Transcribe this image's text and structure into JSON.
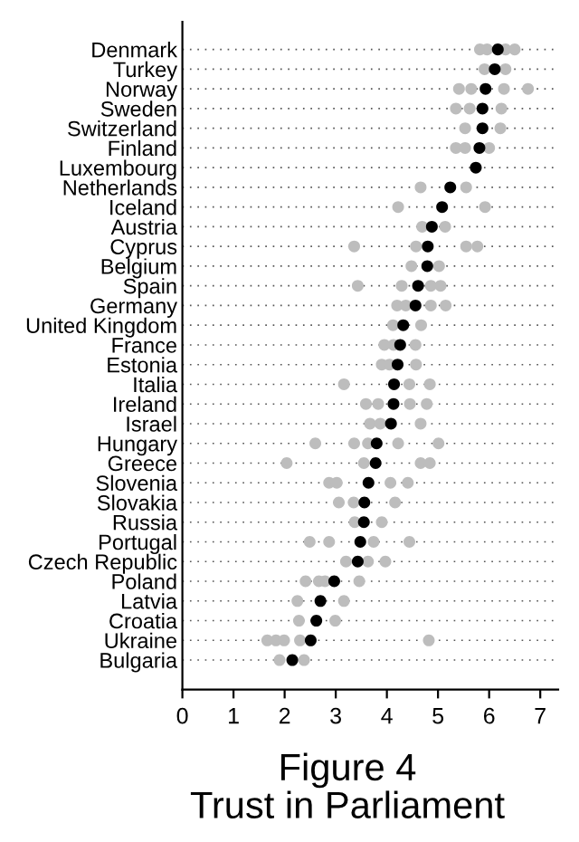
{
  "chart_data": {
    "type": "scatter",
    "orientation": "horizontal",
    "title": "Figure 4",
    "subtitle": "Trust in Parliament",
    "categories": [
      "Denmark",
      "Turkey",
      "Norway",
      "Sweden",
      "Switzerland",
      "Finland",
      "Luxembourg",
      "Netherlands",
      "Iceland",
      "Austria",
      "Cyprus",
      "Belgium",
      "Spain",
      "Germany",
      "United Kingdom",
      "France",
      "Estonia",
      "Italia",
      "Ireland",
      "Israel",
      "Hungary",
      "Greece",
      "Slovenia",
      "Slovakia",
      "Russia",
      "Portugal",
      "Czech Republic",
      "Poland",
      "Latvia",
      "Croatia",
      "Ukraine",
      "Bulgaria"
    ],
    "series": [
      {
        "color": "#bdbdbd",
        "x": [
          "Denmark",
          "Denmark",
          "Denmark",
          "Denmark",
          "Turkey",
          "Turkey",
          "Norway",
          "Norway",
          "Norway",
          "Norway",
          "Sweden",
          "Sweden",
          "Sweden",
          "Switzerland",
          "Switzerland",
          "Finland",
          "Finland",
          "Finland",
          "Netherlands",
          "Netherlands",
          "Iceland",
          "Iceland",
          "Austria",
          "Austria",
          "Cyprus",
          "Cyprus",
          "Cyprus",
          "Cyprus",
          "Belgium",
          "Belgium",
          "Spain",
          "Spain",
          "Spain",
          "Spain",
          "Germany",
          "Germany",
          "Germany",
          "Germany",
          "United Kingdom",
          "United Kingdom",
          "France",
          "France",
          "France",
          "Estonia",
          "Estonia",
          "Estonia",
          "Italia",
          "Italia",
          "Italia",
          "Ireland",
          "Ireland",
          "Ireland",
          "Ireland",
          "Israel",
          "Israel",
          "Israel",
          "Hungary",
          "Hungary",
          "Hungary",
          "Hungary",
          "Hungary",
          "Greece",
          "Greece",
          "Greece",
          "Greece",
          "Slovenia",
          "Slovenia",
          "Slovenia",
          "Slovenia",
          "Slovakia",
          "Slovakia",
          "Slovakia",
          "Russia",
          "Russia",
          "Portugal",
          "Portugal",
          "Portugal",
          "Portugal",
          "Czech Republic",
          "Czech Republic",
          "Czech Republic",
          "Poland",
          "Poland",
          "Poland",
          "Poland",
          "Latvia",
          "Latvia",
          "Croatia",
          "Croatia",
          "Ukraine",
          "Ukraine",
          "Ukraine",
          "Ukraine",
          "Ukraine",
          "Bulgaria",
          "Bulgaria"
        ],
        "values": [
          5.82,
          5.96,
          6.32,
          6.5,
          5.91,
          6.32,
          5.41,
          5.65,
          6.29,
          6.76,
          5.35,
          5.62,
          6.24,
          5.53,
          6.22,
          5.35,
          5.53,
          6.0,
          4.66,
          5.55,
          4.22,
          5.92,
          4.69,
          5.14,
          3.36,
          4.57,
          5.55,
          5.77,
          4.48,
          5.02,
          3.43,
          4.29,
          4.86,
          5.05,
          4.2,
          4.37,
          4.86,
          5.15,
          4.12,
          4.67,
          3.95,
          4.13,
          4.56,
          3.9,
          4.05,
          4.57,
          3.16,
          4.44,
          4.84,
          3.59,
          3.83,
          4.45,
          4.78,
          3.67,
          3.87,
          4.66,
          2.6,
          3.36,
          3.63,
          4.22,
          5.01,
          2.04,
          3.55,
          4.66,
          4.84,
          2.87,
          3.02,
          4.07,
          4.41,
          3.06,
          3.35,
          4.16,
          3.37,
          3.9,
          2.49,
          2.87,
          3.74,
          4.44,
          3.2,
          3.63,
          3.97,
          2.41,
          2.67,
          2.79,
          3.46,
          2.25,
          3.16,
          2.28,
          2.99,
          1.66,
          1.83,
          1.99,
          2.3,
          4.82,
          1.9,
          2.38
        ]
      },
      {
        "color": "#000000",
        "values": [
          6.17,
          6.11,
          5.93,
          5.87,
          5.87,
          5.81,
          5.74,
          5.24,
          5.08,
          4.88,
          4.8,
          4.79,
          4.61,
          4.56,
          4.32,
          4.26,
          4.21,
          4.14,
          4.13,
          4.08,
          3.8,
          3.78,
          3.64,
          3.56,
          3.55,
          3.48,
          3.43,
          2.97,
          2.7,
          2.62,
          2.51,
          2.15
        ]
      }
    ],
    "xlim": [
      0,
      7.35
    ],
    "xticks": [
      0,
      1,
      2,
      3,
      4,
      5,
      6,
      7
    ],
    "grid": "y",
    "marker": "circle",
    "legend": false
  }
}
